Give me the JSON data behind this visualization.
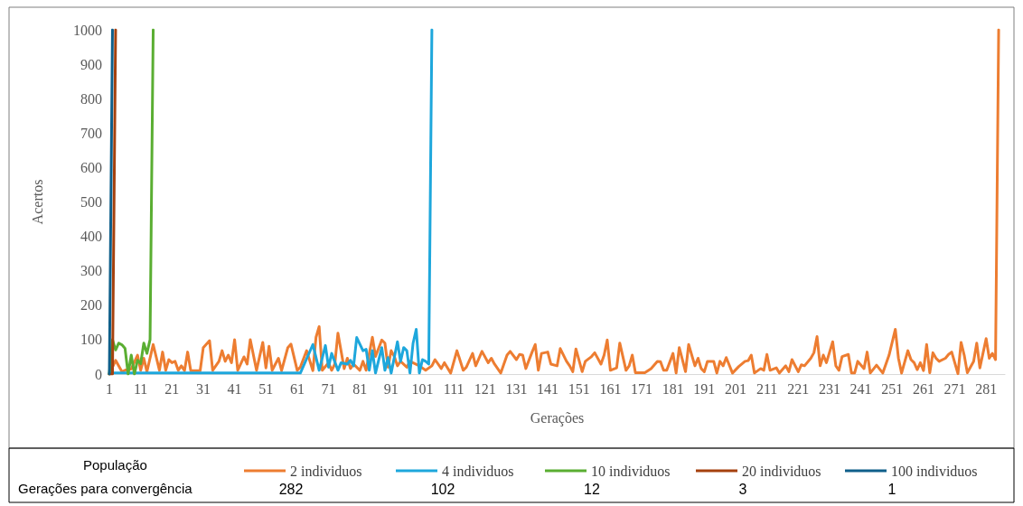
{
  "chart_data": {
    "type": "line",
    "xlabel": "Gerações",
    "ylabel": "Acertos",
    "legend_title": "População",
    "legend": "bottom",
    "grid": false,
    "marker": "none",
    "line_style": "solid",
    "xlim": [
      1,
      287
    ],
    "xticks": [
      1,
      11,
      21,
      31,
      41,
      51,
      61,
      71,
      81,
      91,
      101,
      111,
      121,
      131,
      141,
      151,
      161,
      171,
      181,
      191,
      201,
      211,
      221,
      231,
      241,
      251,
      261,
      271,
      281
    ],
    "ylim": [
      0,
      1000
    ],
    "yticks": [
      0,
      100,
      200,
      300,
      400,
      500,
      600,
      700,
      800,
      900,
      1000
    ],
    "annotations": [
      "Gerações para convergência",
      "282",
      "102",
      "12",
      "3",
      "1"
    ],
    "series": [
      {
        "name": "2 individuos",
        "color": "#ed7d31",
        "x": [
          1,
          3,
          5,
          6,
          8,
          10,
          11,
          12,
          13,
          15,
          17,
          18,
          19,
          20,
          21,
          22,
          23,
          24,
          25,
          26,
          27,
          30,
          31,
          33,
          34,
          36,
          37,
          38,
          39,
          40,
          41,
          42,
          44,
          45,
          46,
          48,
          50,
          51,
          52,
          53,
          55,
          56,
          58,
          59,
          61,
          62,
          64,
          66,
          67,
          68,
          69,
          71,
          72,
          73,
          74,
          76,
          77,
          78,
          79,
          81,
          82,
          83,
          85,
          86,
          88,
          89,
          90,
          91,
          92,
          93,
          94,
          96,
          97,
          100,
          102,
          104,
          105,
          107,
          108,
          110,
          112,
          114,
          115,
          117,
          118,
          120,
          122,
          123,
          124,
          126,
          128,
          129,
          131,
          132,
          133,
          134,
          136,
          137,
          138,
          139,
          141,
          142,
          144,
          145,
          147,
          148,
          149,
          150,
          152,
          153,
          155,
          156,
          158,
          159,
          160,
          161,
          163,
          164,
          166,
          167,
          168,
          169,
          172,
          173,
          174,
          176,
          177,
          178,
          179,
          181,
          182,
          183,
          185,
          186,
          188,
          189,
          190,
          191,
          192,
          194,
          195,
          196,
          197,
          198,
          200,
          202,
          204,
          205,
          206,
          207,
          209,
          210,
          211,
          212,
          214,
          215,
          217,
          218,
          219,
          221,
          222,
          223,
          225,
          226,
          227,
          228,
          229,
          230,
          232,
          233,
          234,
          235,
          237,
          238,
          239,
          240,
          242,
          243,
          244,
          246,
          248,
          250,
          252,
          253,
          254,
          256,
          257,
          258,
          259,
          260,
          261,
          262,
          263,
          264,
          265,
          266,
          268,
          269,
          270,
          272,
          273,
          274,
          275,
          277,
          278,
          279,
          281,
          282,
          283,
          284,
          285
        ],
        "values": [
          0,
          40,
          7,
          11,
          15,
          55,
          11,
          46,
          7,
          86,
          11,
          64,
          11,
          42,
          33,
          37,
          11,
          24,
          10,
          64,
          10,
          10,
          77,
          97,
          11,
          37,
          68,
          37,
          55,
          33,
          100,
          11,
          50,
          29,
          100,
          11,
          92,
          18,
          81,
          11,
          46,
          10,
          77,
          87,
          11,
          20,
          68,
          10,
          107,
          138,
          11,
          33,
          11,
          29,
          119,
          16,
          46,
          16,
          29,
          11,
          37,
          11,
          107,
          51,
          99,
          90,
          20,
          68,
          51,
          24,
          37,
          20,
          37,
          24,
          11,
          24,
          42,
          16,
          33,
          3,
          68,
          11,
          20,
          60,
          24,
          66,
          33,
          46,
          29,
          3,
          55,
          66,
          42,
          57,
          55,
          16,
          64,
          86,
          11,
          60,
          64,
          29,
          24,
          74,
          37,
          24,
          7,
          73,
          7,
          37,
          51,
          62,
          29,
          55,
          99,
          11,
          18,
          90,
          11,
          24,
          55,
          4,
          4,
          10,
          16,
          37,
          36,
          11,
          11,
          60,
          3,
          77,
          7,
          86,
          24,
          46,
          16,
          7,
          37,
          37,
          3,
          37,
          24,
          48,
          3,
          22,
          37,
          39,
          55,
          3,
          16,
          11,
          57,
          11,
          18,
          3,
          24,
          7,
          42,
          7,
          27,
          24,
          46,
          62,
          109,
          24,
          55,
          33,
          94,
          24,
          11,
          51,
          57,
          3,
          3,
          37,
          16,
          64,
          3,
          26,
          3,
          55,
          130,
          46,
          3,
          68,
          42,
          33,
          13,
          33,
          10,
          86,
          4,
          62,
          46,
          37,
          46,
          57,
          64,
          1,
          92,
          55,
          4,
          37,
          90,
          18,
          103,
          46,
          60,
          42,
          1000
        ]
      },
      {
        "name": "4 individuos",
        "color": "#1ea7dc",
        "x": [
          1,
          62,
          66,
          68,
          70,
          71,
          72,
          74,
          75,
          77,
          78,
          79,
          80,
          82,
          83,
          84,
          85,
          86,
          88,
          89,
          90,
          91,
          93,
          94,
          95,
          96,
          97,
          98,
          99,
          100,
          101,
          102,
          103,
          104
        ],
        "values": [
          3,
          3,
          86,
          11,
          83,
          20,
          60,
          11,
          33,
          29,
          40,
          24,
          106,
          68,
          72,
          11,
          68,
          3,
          77,
          11,
          48,
          3,
          94,
          37,
          77,
          68,
          3,
          90,
          130,
          3,
          42,
          37,
          29,
          1000
        ]
      },
      {
        "name": "10 individuos",
        "color": "#5aae32",
        "x": [
          1,
          2,
          3,
          4,
          5,
          6,
          7,
          8,
          9,
          10,
          11,
          12,
          13,
          14,
          15
        ],
        "values": [
          0,
          100,
          70,
          90,
          85,
          75,
          0,
          55,
          0,
          40,
          30,
          90,
          60,
          100,
          1000
        ]
      },
      {
        "name": "20 individuos",
        "color": "#a5410e",
        "x": [
          1,
          2,
          3
        ],
        "values": [
          0,
          0,
          1000
        ]
      },
      {
        "name": "100 individuos",
        "color": "#0f5f8a",
        "x": [
          1,
          2
        ],
        "values": [
          0,
          1000
        ]
      }
    ]
  }
}
